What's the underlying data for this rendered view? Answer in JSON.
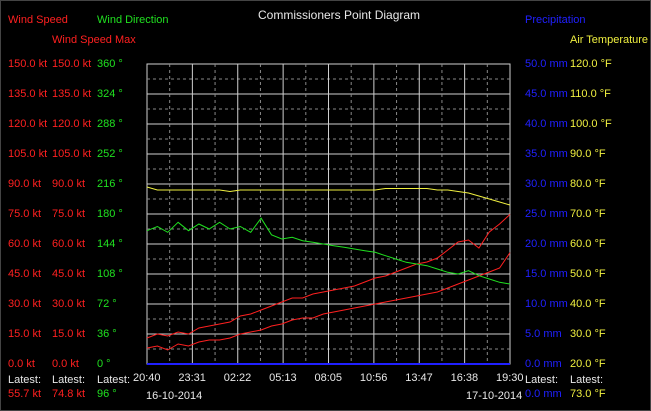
{
  "title": "Commissioners Point Diagram",
  "colors": {
    "wind_speed": "#ff2020",
    "wind_speed_max": "#ff2020",
    "wind_direction": "#20e020",
    "precipitation": "#2020ff",
    "air_temperature": "#f0f040",
    "grid": "#cfcfcf",
    "plot_bg": "#000000",
    "text": "#e8e8e8"
  },
  "axes": {
    "wind_speed": {
      "label": "Wind Speed",
      "ticks": [
        "150.0 kt",
        "135.0 kt",
        "120.0 kt",
        "105.0 kt",
        "90.0 kt",
        "75.0 kt",
        "60.0 kt",
        "45.0 kt",
        "30.0 kt",
        "15.0 kt",
        "0.0 kt"
      ],
      "latest_label": "Latest:",
      "latest_value": "55.7 kt"
    },
    "wind_speed_max": {
      "label": "Wind Speed Max",
      "ticks": [
        "150.0 kt",
        "135.0 kt",
        "120.0 kt",
        "105.0 kt",
        "90.0 kt",
        "75.0 kt",
        "60.0 kt",
        "45.0 kt",
        "30.0 kt",
        "15.0 kt",
        "0.0 kt"
      ],
      "latest_label": "Latest:",
      "latest_value": "74.8 kt"
    },
    "wind_direction": {
      "label": "Wind Direction",
      "ticks": [
        "360 °",
        "324 °",
        "288 °",
        "252 °",
        "216 °",
        "180 °",
        "144 °",
        "108 °",
        "72 °",
        "36 °",
        "0 °"
      ],
      "latest_label": "Latest:",
      "latest_value": "96 °"
    },
    "precipitation": {
      "label": "Precipitation",
      "ticks": [
        "50.0 mm",
        "45.0 mm",
        "40.0 mm",
        "35.0 mm",
        "30.0 mm",
        "25.0 mm",
        "20.0 mm",
        "15.0 mm",
        "10.0 mm",
        "5.0 mm",
        "0.0 mm"
      ],
      "latest_label": "Latest:",
      "latest_value": "0.0 mm"
    },
    "air_temperature": {
      "label": "Air Temperature",
      "ticks": [
        "120.0 °F",
        "110.0 °F",
        "100.0 °F",
        "90.0 °F",
        "80.0 °F",
        "70.0 °F",
        "60.0 °F",
        "50.0 °F",
        "40.0 °F",
        "30.0 °F",
        "20.0 °F"
      ],
      "latest_label": "Latest:",
      "latest_value": "73.0 °F"
    }
  },
  "x_axis": {
    "ticks": [
      "20:40",
      "23:31",
      "02:22",
      "05:13",
      "08:05",
      "10:56",
      "13:47",
      "16:38",
      "19:30"
    ],
    "date_start": "16-10-2014",
    "date_end": "17-10-2014"
  },
  "chart_data": {
    "type": "line",
    "title": "Commissioners Point Diagram",
    "x_ticks": [
      "20:40",
      "23:31",
      "02:22",
      "05:13",
      "08:05",
      "10:56",
      "13:47",
      "16:38",
      "19:30"
    ],
    "grid": true,
    "series": [
      {
        "name": "Wind Speed",
        "unit": "kt",
        "ylim": [
          0,
          150
        ],
        "values": [
          8,
          9,
          7,
          10,
          9,
          11,
          12,
          12,
          13,
          15,
          16,
          17,
          19,
          20,
          22,
          23,
          23,
          25,
          26,
          27,
          28,
          29,
          30,
          31,
          32,
          33,
          34,
          35,
          36,
          38,
          40,
          42,
          44,
          46,
          48,
          55.7
        ]
      },
      {
        "name": "Wind Speed Max",
        "unit": "kt",
        "ylim": [
          0,
          150
        ],
        "values": [
          13,
          15,
          14,
          16,
          15,
          18,
          19,
          20,
          21,
          24,
          25,
          27,
          29,
          31,
          33,
          33,
          35,
          36,
          37,
          38,
          39,
          41,
          43,
          44,
          46,
          48,
          50,
          51,
          53,
          57,
          61,
          62,
          58,
          66,
          70,
          74.8
        ]
      },
      {
        "name": "Wind Direction",
        "unit": "°",
        "ylim": [
          0,
          360
        ],
        "values": [
          160,
          165,
          158,
          170,
          160,
          168,
          162,
          170,
          162,
          165,
          158,
          175,
          155,
          150,
          152,
          148,
          146,
          144,
          142,
          140,
          138,
          136,
          134,
          130,
          126,
          122,
          120,
          118,
          114,
          110,
          108,
          112,
          106,
          102,
          98,
          96
        ]
      },
      {
        "name": "Air Temperature",
        "unit": "°F",
        "ylim": [
          20,
          120
        ],
        "values": [
          79,
          78,
          78,
          78,
          78,
          78,
          78,
          78,
          77.5,
          78,
          78,
          78,
          78,
          78,
          78,
          78,
          78,
          78,
          78,
          78,
          78,
          78,
          78,
          78.5,
          78.5,
          78.5,
          78.5,
          78.5,
          78,
          78,
          77.5,
          77,
          76,
          75,
          74,
          73
        ]
      },
      {
        "name": "Precipitation",
        "unit": "mm",
        "ylim": [
          0,
          50
        ],
        "values": [
          0,
          0,
          0,
          0,
          0,
          0,
          0,
          0,
          0,
          0,
          0,
          0,
          0,
          0,
          0,
          0,
          0,
          0,
          0,
          0,
          0,
          0,
          0,
          0,
          0,
          0,
          0,
          0,
          0,
          0,
          0,
          0,
          0,
          0,
          0,
          0
        ]
      }
    ]
  }
}
